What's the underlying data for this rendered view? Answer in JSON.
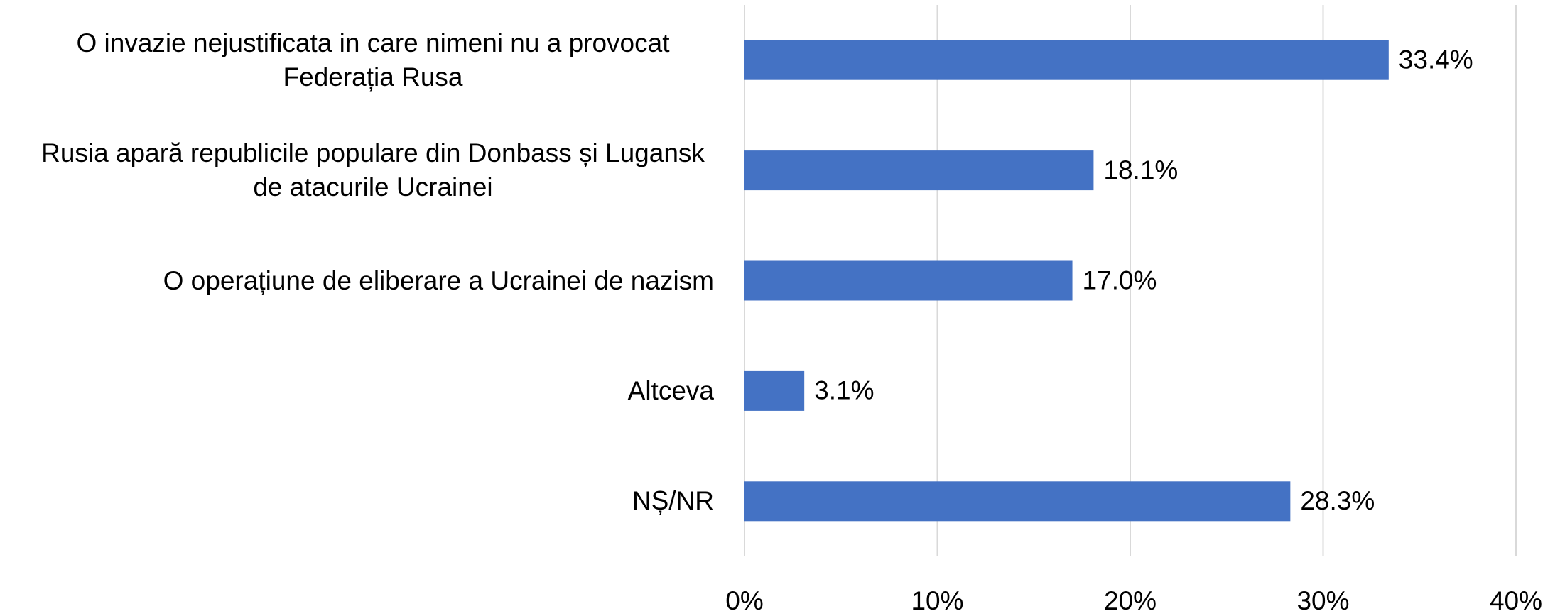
{
  "chart_data": {
    "type": "bar",
    "orientation": "horizontal",
    "categories": [
      "O invazie nejustificata in care nimeni nu a provocat Federația Rusa",
      "Rusia apară republicile populare din Donbass și Lugansk de atacurile Ucrainei",
      "O operațiune de eliberare a Ucrainei de nazism",
      "Altceva",
      "NȘ/NR"
    ],
    "values": [
      33.4,
      18.1,
      17.0,
      3.1,
      28.3
    ],
    "value_labels": [
      "33.4%",
      "18.1%",
      "17.0%",
      "3.1%",
      "28.3%"
    ],
    "color": "#4472c4",
    "xlim": [
      0,
      40
    ],
    "xticks": [
      {
        "value": 0,
        "label": "0%"
      },
      {
        "value": 10,
        "label": "10%"
      },
      {
        "value": 20,
        "label": "20%"
      },
      {
        "value": 30,
        "label": "30%"
      },
      {
        "value": 40,
        "label": "40%"
      }
    ],
    "grid": true
  }
}
